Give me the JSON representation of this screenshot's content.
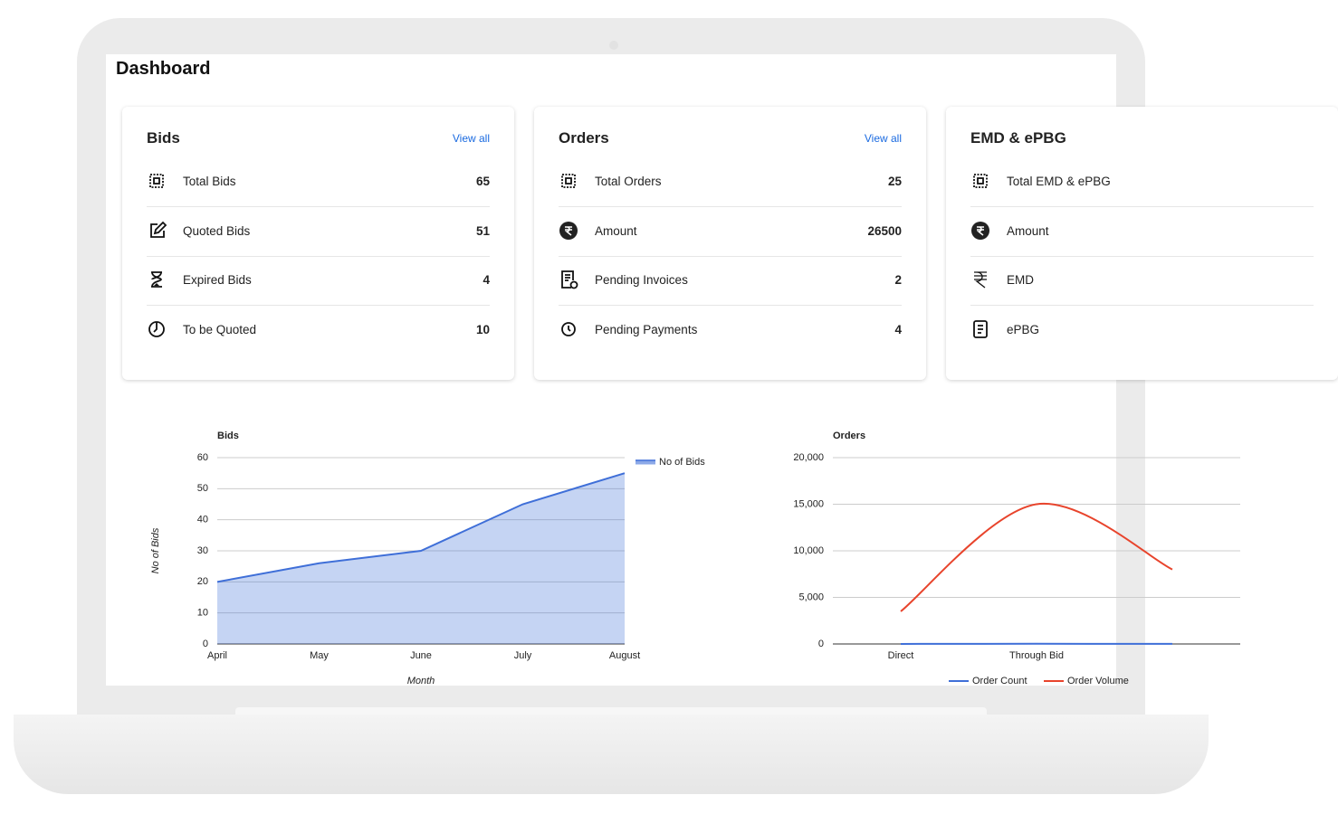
{
  "header": {
    "title": "Dashboard"
  },
  "cards": [
    {
      "title": "Bids",
      "link": "View all",
      "rows": [
        {
          "label": "Total Bids",
          "value": 65
        },
        {
          "label": "Quoted Bids",
          "value": 51
        },
        {
          "label": "Expired Bids",
          "value": 4
        },
        {
          "label": "To be Quoted",
          "value": 10
        }
      ]
    },
    {
      "title": "Orders",
      "link": "View all",
      "rows": [
        {
          "label": "Total Orders",
          "value": 25
        },
        {
          "label": "Amount",
          "value": 26500
        },
        {
          "label": "Pending Invoices",
          "value": 2
        },
        {
          "label": "Pending Payments",
          "value": 4
        }
      ]
    },
    {
      "title": "EMD & ePBG",
      "rows": [
        {
          "label": "Total EMD & ePBG"
        },
        {
          "label": "Amount"
        },
        {
          "label": "EMD"
        },
        {
          "label": "ePBG"
        }
      ]
    }
  ],
  "chart_data": [
    {
      "type": "area",
      "title": "Bids",
      "x_label": "Month",
      "y_label": "No of Bids",
      "categories": [
        "April",
        "May",
        "June",
        "July",
        "August"
      ],
      "series": [
        {
          "name": "No of Bids",
          "color": "#3f6fd8",
          "values": [
            20,
            26,
            30,
            45,
            55
          ]
        }
      ],
      "ylim": [
        0,
        60
      ],
      "yticks": [
        0,
        10,
        20,
        30,
        40,
        50,
        60
      ],
      "grid": true,
      "legend": "right"
    },
    {
      "type": "line",
      "title": "Orders",
      "smooth": true,
      "categories": [
        "Direct",
        "Through Bid",
        null
      ],
      "series": [
        {
          "name": "Order Count",
          "color": "#3f6fd8",
          "values": [
            5,
            20,
            10
          ]
        },
        {
          "name": "Order Volume",
          "color": "#e8442c",
          "values": [
            3500,
            15000,
            8000
          ]
        }
      ],
      "ylim": [
        0,
        20000
      ],
      "yticks": [
        0,
        {
          "value": 5000,
          "label": "5,000"
        },
        {
          "value": 10000,
          "label": "10,000"
        },
        {
          "value": 15000,
          "label": "15,000"
        },
        {
          "value": 20000,
          "label": "20,000"
        }
      ],
      "grid": true,
      "legend": "bottom"
    }
  ]
}
